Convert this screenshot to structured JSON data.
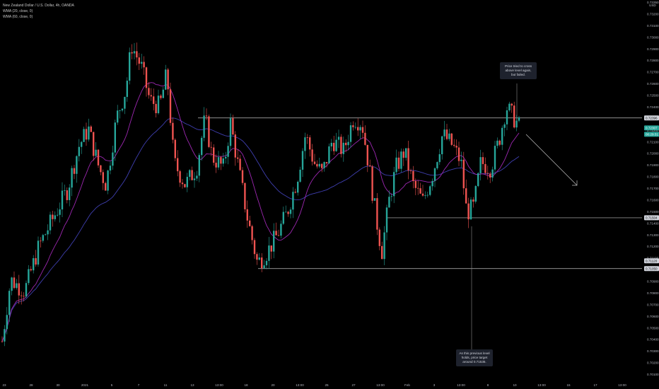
{
  "legend": {
    "title": "New Zealand Dollar / U.S. Dollar, 4h, OANDA",
    "wma1": "WMA (20, close, 0)",
    "wma2": "WMA (60, close, 0)"
  },
  "annotations": {
    "top": "Price tried to cross above level again, but failed.",
    "bottom": "As this previous level holds, price target around 0.71535."
  },
  "chart_data": {
    "type": "candlestick",
    "currency_label": "USD",
    "y_axis": {
      "range": [
        0.7005,
        0.7345
      ],
      "ticks": [
        "0.73350",
        "0.73200",
        "0.73100",
        "0.73000",
        "0.72900",
        "0.72800",
        "0.72700",
        "0.72600",
        "0.72500",
        "0.72400",
        "0.72300",
        "0.72200",
        "0.72100",
        "0.72000",
        "0.71900",
        "0.71800",
        "0.71700",
        "0.71600",
        "0.71500",
        "0.71400",
        "0.71300",
        "0.71200",
        "0.71100",
        "0.71000",
        "0.70900",
        "0.70800",
        "0.70700",
        "0.70600",
        "0.70500",
        "0.70400",
        "0.70300",
        "0.70200",
        "0.70100"
      ]
    },
    "x_axis": {
      "ticks": [
        "23",
        "28",
        "30",
        "2021",
        "5",
        "7",
        "11",
        "13",
        "13:00",
        "18",
        "20",
        "13:00",
        "25",
        "27",
        "13:00",
        "Feb",
        "3",
        "13:00",
        "8",
        "10",
        "13:00",
        "15",
        "17",
        "13:00"
      ]
    },
    "horizontal_levels": [
      0.72396,
      0.71504,
      0.7105
    ],
    "price_labels": [
      {
        "text": "0.72396",
        "value": 0.72396
      },
      {
        "text": "0.72307",
        "value": 0.72307,
        "color": "#26a69a"
      },
      {
        "text": "00:29:31",
        "value": 0.7225,
        "color": "#26a69a"
      },
      {
        "text": "0.71504",
        "value": 0.71504
      },
      {
        "text": "0.71120",
        "value": 0.7112
      },
      {
        "text": "0.71050",
        "value": 0.7105
      }
    ],
    "colors": {
      "up": "#26a69a",
      "down": "#ef5350",
      "wma20": "#9c27b0",
      "wma60": "#3f3fb0"
    },
    "candles": []
  }
}
